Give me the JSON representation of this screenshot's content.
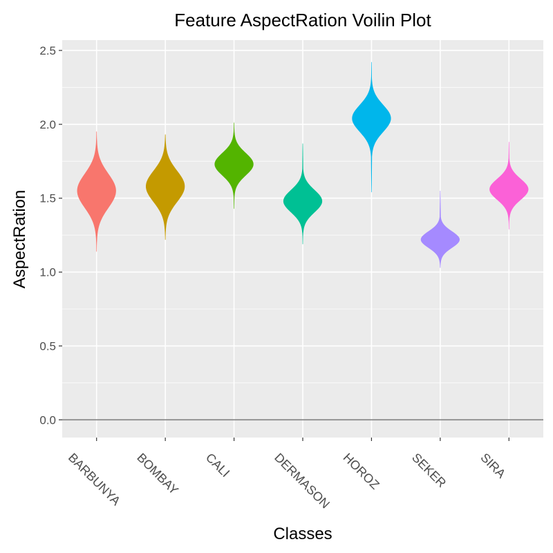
{
  "chart_data": {
    "type": "violin",
    "title": "Feature AspectRation Voilin Plot",
    "xlabel": "Classes",
    "ylabel": "AspectRation",
    "ylim": [
      -0.12,
      2.57
    ],
    "yticks": [
      0.0,
      0.5,
      1.0,
      1.5,
      2.0,
      2.5
    ],
    "ytick_labels": [
      "0.0",
      "0.5",
      "1.0",
      "1.5",
      "2.0",
      "2.5"
    ],
    "reference_line_y": 0.0,
    "grid": true,
    "legend": "none",
    "categories": [
      "BARBUNYA",
      "BOMBAY",
      "CALI",
      "DERMASON",
      "HOROZ",
      "SEKER",
      "SIRA"
    ],
    "series": [
      {
        "category": "BARBUNYA",
        "color": "#F8766D",
        "min": 1.14,
        "max": 1.95,
        "center": 1.55,
        "spread": 0.115
      },
      {
        "category": "BOMBAY",
        "color": "#C49A00",
        "min": 1.22,
        "max": 1.93,
        "center": 1.58,
        "spread": 0.105
      },
      {
        "category": "CALI",
        "color": "#53B400",
        "min": 1.43,
        "max": 2.01,
        "center": 1.73,
        "spread": 0.075
      },
      {
        "category": "DERMASON",
        "color": "#00C094",
        "min": 1.19,
        "max": 1.87,
        "center": 1.48,
        "spread": 0.075
      },
      {
        "category": "HOROZ",
        "color": "#00B6EB",
        "min": 1.54,
        "max": 2.42,
        "center": 2.04,
        "spread": 0.09
      },
      {
        "category": "SEKER",
        "color": "#A58AFF",
        "min": 1.03,
        "max": 1.55,
        "center": 1.22,
        "spread": 0.055
      },
      {
        "category": "SIRA",
        "color": "#FB61D7",
        "min": 1.29,
        "max": 1.88,
        "center": 1.56,
        "spread": 0.07
      }
    ]
  }
}
